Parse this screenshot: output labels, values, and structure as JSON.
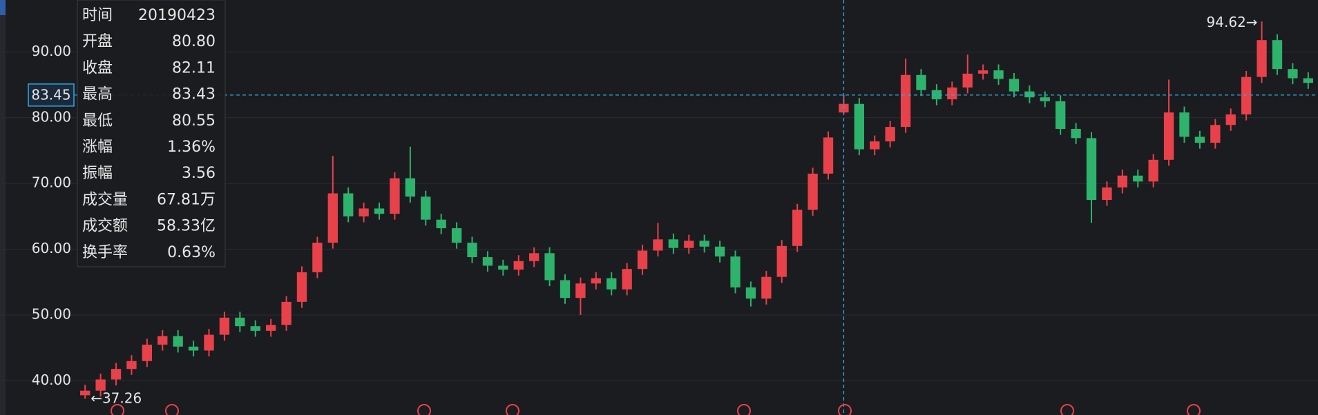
{
  "chart_data": {
    "type": "candlestick",
    "up_color": "#e8414a",
    "down_color": "#2db36b",
    "ylim": [
      34.8,
      97.9
    ],
    "yticks": [
      {
        "value": 40,
        "label": "40.00"
      },
      {
        "value": 50,
        "label": "50.00"
      },
      {
        "value": 60,
        "label": "60.00"
      },
      {
        "value": 70,
        "label": "70.00"
      },
      {
        "value": 80,
        "label": "80.00"
      },
      {
        "value": 90,
        "label": "90.00"
      }
    ],
    "grid": true,
    "open": [
      37.8,
      38.5,
      40.2,
      41.8,
      43.0,
      45.5,
      46.8,
      45.2,
      44.6,
      47.0,
      49.6,
      48.3,
      47.6,
      48.5,
      52.0,
      56.5,
      61.0,
      68.5,
      65.0,
      66.2,
      65.4,
      70.8,
      68.0,
      64.5,
      63.2,
      61.0,
      58.8,
      57.5,
      56.9,
      58.2,
      59.4,
      55.3,
      52.6,
      54.8,
      55.6,
      53.9,
      57.0,
      59.8,
      61.5,
      60.2,
      61.3,
      60.4,
      58.9,
      54.2,
      52.5,
      55.8,
      60.5,
      66.0,
      71.5,
      80.8,
      82.1,
      75.2,
      76.4,
      78.6,
      86.5,
      84.2,
      82.8,
      84.6,
      86.7,
      87.2,
      85.9,
      84.0,
      83.1,
      82.5,
      78.3,
      76.9,
      67.5,
      69.4,
      71.2,
      70.3,
      73.6,
      80.8,
      77.1,
      76.2,
      78.9,
      80.5,
      86.2,
      91.8,
      87.4,
      86.0
    ],
    "high": [
      39.4,
      41.1,
      42.7,
      43.9,
      46.4,
      47.7,
      47.7,
      46.1,
      47.9,
      50.5,
      50.5,
      49.2,
      49.4,
      52.9,
      57.4,
      61.9,
      74.2,
      69.4,
      67.1,
      67.1,
      71.7,
      75.6,
      68.9,
      65.4,
      64.1,
      61.9,
      59.7,
      58.4,
      59.1,
      60.3,
      60.3,
      56.2,
      55.7,
      56.5,
      56.5,
      57.9,
      60.7,
      64.0,
      62.4,
      62.2,
      62.2,
      61.3,
      59.8,
      55.1,
      56.7,
      61.4,
      66.9,
      72.4,
      77.9,
      83.43,
      83.0,
      77.3,
      79.5,
      89.0,
      87.4,
      85.1,
      85.5,
      89.6,
      88.1,
      88.1,
      86.8,
      84.9,
      84.0,
      83.4,
      79.2,
      77.8,
      70.3,
      72.1,
      72.1,
      74.5,
      85.8,
      81.7,
      78.0,
      79.8,
      81.4,
      87.1,
      94.62,
      92.7,
      88.3,
      86.9
    ],
    "low": [
      37.26,
      37.6,
      39.3,
      40.9,
      42.1,
      44.6,
      44.3,
      43.7,
      43.7,
      46.1,
      47.4,
      46.7,
      46.7,
      47.6,
      51.1,
      55.6,
      60.1,
      64.1,
      64.1,
      64.5,
      64.5,
      67.1,
      63.6,
      62.3,
      60.1,
      57.9,
      56.6,
      56.0,
      56.0,
      57.3,
      54.4,
      51.7,
      50.0,
      53.9,
      53.0,
      53.0,
      56.1,
      58.9,
      59.3,
      59.3,
      59.5,
      58.0,
      53.3,
      51.3,
      51.6,
      54.9,
      59.6,
      65.1,
      70.6,
      80.55,
      74.3,
      74.3,
      75.5,
      77.7,
      83.3,
      81.9,
      81.9,
      83.7,
      85.8,
      85.0,
      83.1,
      82.2,
      81.6,
      77.4,
      76.0,
      64.0,
      66.6,
      68.5,
      69.4,
      69.4,
      72.7,
      76.2,
      75.3,
      75.3,
      78.0,
      79.6,
      85.3,
      86.5,
      85.1,
      84.4
    ],
    "close": [
      38.5,
      40.2,
      41.8,
      43.0,
      45.5,
      46.8,
      45.2,
      44.6,
      47.0,
      49.6,
      48.3,
      47.6,
      48.5,
      52.0,
      56.5,
      61.0,
      68.5,
      65.0,
      66.2,
      65.4,
      70.8,
      68.0,
      64.5,
      63.2,
      61.0,
      58.8,
      57.5,
      56.9,
      58.2,
      59.4,
      55.3,
      52.6,
      54.8,
      55.6,
      53.9,
      57.0,
      59.8,
      61.5,
      60.2,
      61.3,
      60.4,
      58.9,
      54.2,
      52.5,
      55.8,
      60.5,
      66.0,
      71.5,
      77.0,
      82.11,
      75.2,
      76.4,
      78.6,
      86.5,
      84.2,
      82.8,
      84.6,
      86.7,
      87.2,
      85.9,
      84.0,
      83.1,
      82.5,
      78.3,
      76.9,
      67.5,
      69.4,
      71.2,
      70.3,
      73.6,
      80.8,
      77.1,
      76.2,
      78.9,
      80.5,
      86.2,
      91.8,
      87.4,
      86.0,
      85.3
    ],
    "max_label": "94.62→",
    "min_label": "←37.26",
    "crosshair_y": {
      "value": 83.45,
      "label": "83.45"
    },
    "tooltip": [
      {
        "label": "时间",
        "value": "20190423",
        "color": "#ffffff"
      },
      {
        "label": "开盘",
        "value": "80.80",
        "color": "#2db36b"
      },
      {
        "label": "收盘",
        "value": "82.11",
        "color": "#e8414a"
      },
      {
        "label": "最高",
        "value": "83.43",
        "color": "#e8414a"
      },
      {
        "label": "最低",
        "value": "80.55",
        "color": "#2db36b"
      },
      {
        "label": "涨幅",
        "value": "1.36%",
        "color": "#e8414a"
      },
      {
        "label": "振幅",
        "value": "3.56",
        "color": "#ffffff"
      },
      {
        "label": "成交量",
        "value": "67.81万",
        "color": "#ffffff"
      },
      {
        "label": "成交额",
        "value": "58.33亿",
        "color": "#ffffff"
      },
      {
        "label": "换手率",
        "value": "0.63%",
        "color": "#ffffff"
      }
    ]
  }
}
